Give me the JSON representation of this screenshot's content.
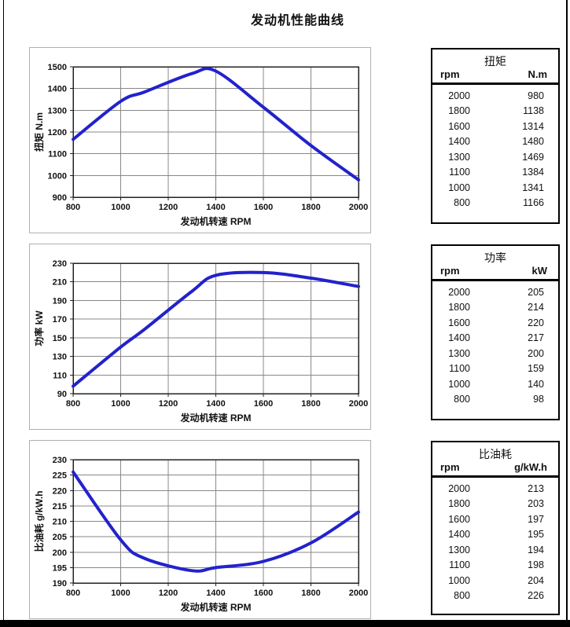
{
  "page_title": "发动机性能曲线",
  "colors": {
    "curve": "#2222cc",
    "grid": "#888888",
    "plot_border": "#222222",
    "panel_border": "#b0b0b0",
    "table_border": "#000000",
    "text": "#111111"
  },
  "chart_data": [
    {
      "type": "line",
      "name": "torque",
      "x": [
        800,
        1000,
        1100,
        1300,
        1400,
        1600,
        1800,
        2000
      ],
      "values": [
        1166,
        1341,
        1384,
        1469,
        1480,
        1314,
        1138,
        980
      ],
      "title": "",
      "xlabel": "发动机转速  RPM",
      "ylabel": "扭矩  N.m",
      "xlim": [
        800,
        2000
      ],
      "xstep": 200,
      "ylim": [
        900,
        1500
      ],
      "ystep": 100,
      "grid": true,
      "legend": "none",
      "line_color": "#2222cc"
    },
    {
      "type": "line",
      "name": "power",
      "x": [
        800,
        1000,
        1100,
        1300,
        1400,
        1600,
        1800,
        2000
      ],
      "values": [
        98,
        140,
        159,
        200,
        217,
        220,
        214,
        205
      ],
      "title": "",
      "xlabel": "发动机转速  RPM",
      "ylabel": "功率  kW",
      "xlim": [
        800,
        2000
      ],
      "xstep": 200,
      "ylim": [
        90,
        230
      ],
      "ystep": 20,
      "grid": true,
      "legend": "none",
      "line_color": "#2222cc"
    },
    {
      "type": "line",
      "name": "fuel-consumption",
      "x": [
        800,
        1000,
        1100,
        1300,
        1400,
        1600,
        1800,
        2000
      ],
      "values": [
        226,
        204,
        198,
        194,
        195,
        197,
        203,
        213
      ],
      "title": "",
      "xlabel": "发动机转速  RPM",
      "ylabel": "比油耗  g/kW.h",
      "xlim": [
        800,
        2000
      ],
      "xstep": 200,
      "ylim": [
        190,
        230
      ],
      "ystep": 5,
      "grid": true,
      "legend": "none",
      "line_color": "#2222cc"
    }
  ],
  "tables": [
    {
      "name": "torque",
      "title": "扭矩",
      "col1": "rpm",
      "col2": "N.m",
      "rows": [
        [
          "2000",
          "980"
        ],
        [
          "1800",
          "1138"
        ],
        [
          "1600",
          "1314"
        ],
        [
          "1400",
          "1480"
        ],
        [
          "1300",
          "1469"
        ],
        [
          "1100",
          "1384"
        ],
        [
          "1000",
          "1341"
        ],
        [
          "800",
          "1166"
        ]
      ]
    },
    {
      "name": "power",
      "title": "功率",
      "col1": "rpm",
      "col2": "kW",
      "rows": [
        [
          "2000",
          "205"
        ],
        [
          "1800",
          "214"
        ],
        [
          "1600",
          "220"
        ],
        [
          "1400",
          "217"
        ],
        [
          "1300",
          "200"
        ],
        [
          "1100",
          "159"
        ],
        [
          "1000",
          "140"
        ],
        [
          "800",
          "98"
        ]
      ]
    },
    {
      "name": "fuel-consumption",
      "title": "比油耗",
      "col1": "rpm",
      "col2": "g/kW.h",
      "rows": [
        [
          "2000",
          "213"
        ],
        [
          "1800",
          "203"
        ],
        [
          "1600",
          "197"
        ],
        [
          "1400",
          "195"
        ],
        [
          "1300",
          "194"
        ],
        [
          "1100",
          "198"
        ],
        [
          "1000",
          "204"
        ],
        [
          "800",
          "226"
        ]
      ]
    }
  ]
}
